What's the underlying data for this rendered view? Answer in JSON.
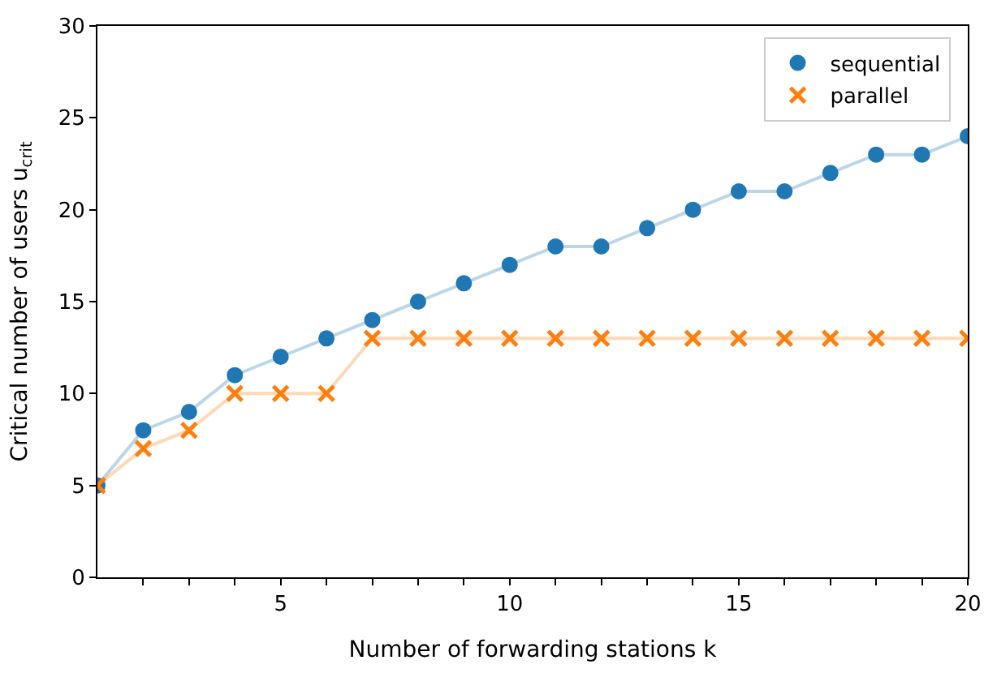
{
  "chart_data": {
    "type": "line",
    "xlabel": "Number of forwarding stations k",
    "ylabel": "Critical number of users u$_{crit}$",
    "x": [
      1,
      2,
      3,
      4,
      5,
      6,
      7,
      8,
      9,
      10,
      11,
      12,
      13,
      14,
      15,
      16,
      17,
      18,
      19,
      20
    ],
    "series": [
      {
        "name": "sequential",
        "color": "#1f77b4",
        "marker": "circle",
        "values": [
          5,
          8,
          9,
          11,
          12,
          13,
          14,
          15,
          16,
          17,
          18,
          18,
          19,
          20,
          21,
          21,
          22,
          23,
          23,
          24
        ]
      },
      {
        "name": "parallel",
        "color": "#ff7f0e",
        "marker": "cross",
        "values": [
          5,
          7,
          8,
          10,
          10,
          10,
          13,
          13,
          13,
          13,
          13,
          13,
          13,
          13,
          13,
          13,
          13,
          13,
          13,
          13
        ]
      }
    ],
    "xlim": [
      1,
      20
    ],
    "xticks": [
      {
        "value": 2,
        "label": null
      },
      {
        "value": 3,
        "label": null
      },
      {
        "value": 4,
        "label": null
      },
      5,
      {
        "value": 6,
        "label": null
      },
      {
        "value": 7,
        "label": null
      },
      {
        "value": 8,
        "label": null
      },
      {
        "value": 9,
        "label": null
      },
      10,
      {
        "value": 11,
        "label": null
      },
      {
        "value": 12,
        "label": null
      },
      {
        "value": 13,
        "label": null
      },
      {
        "value": 14,
        "label": null
      },
      15,
      {
        "value": 16,
        "label": null
      },
      {
        "value": 17,
        "label": null
      },
      {
        "value": 18,
        "label": null
      },
      {
        "value": 19,
        "label": null
      },
      20
    ],
    "ylim": [
      0,
      30
    ],
    "yticks": [
      0,
      5,
      10,
      15,
      20,
      25,
      30
    ],
    "legend": "top right",
    "line_style": "solid"
  }
}
